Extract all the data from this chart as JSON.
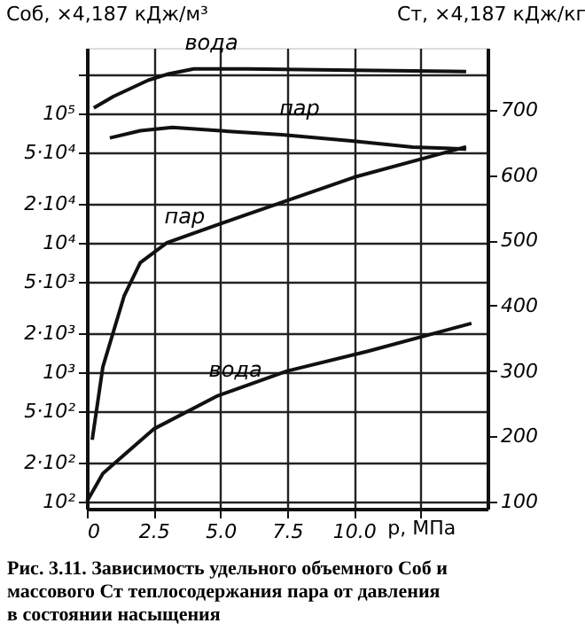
{
  "chart_data": {
    "type": "line",
    "xlabel": "p, МПа",
    "ylabel": "Cоб, ×4,187 кДж/м³",
    "y2label": "Cт, ×4,187 кДж/кг",
    "xlim": [
      0,
      15
    ],
    "xticks": [
      0,
      {
        "value": 2.5,
        "label": "2.5"
      },
      {
        "value": 5,
        "label": "5.0"
      },
      {
        "value": 7.5,
        "label": "7.5"
      },
      {
        "value": 10,
        "label": "10.0"
      },
      {
        "value": 12.5,
        "label": null
      }
    ],
    "log": "y",
    "ylim": [
      88,
      320000
    ],
    "yticks": [
      {
        "value": 100,
        "label": "10²"
      },
      {
        "value": 200,
        "label": "2·10²"
      },
      {
        "value": 500,
        "label": "5·10²"
      },
      {
        "value": 1000,
        "label": "10³"
      },
      {
        "value": 2000,
        "label": "2·10³"
      },
      {
        "value": 5000,
        "label": "5·10³"
      },
      {
        "value": 10000,
        "label": "10⁴"
      },
      {
        "value": 20000,
        "label": "2·10⁴"
      },
      {
        "value": 50000,
        "label": "5·10⁴"
      },
      {
        "value": 100000,
        "label": "10⁵"
      },
      {
        "value": 200000,
        "label": null
      }
    ],
    "y2lim": [
      89,
      795
    ],
    "y2ticks": [
      100,
      200,
      300,
      400,
      500,
      600,
      700
    ],
    "grid": true,
    "marker": "none",
    "line_style": "solid",
    "series": [
      {
        "name": "вода",
        "color": "#111111",
        "x": [
          0.26,
          1,
          2.3,
          3,
          4,
          6,
          10,
          14.2
        ],
        "values": [
          110000,
          135000,
          180000,
          200000,
          220000,
          220000,
          215000,
          210000
        ]
      },
      {
        "name": "пар",
        "color": "#111111",
        "axis": "y2",
        "x": [
          0.86,
          2,
          3.2,
          5,
          7.3,
          10,
          12.2,
          14.2
        ],
        "values": [
          657,
          668,
          673,
          668,
          662,
          652,
          643,
          640
        ]
      },
      {
        "name": "пар",
        "color": "#111111",
        "x": [
          0.2,
          0.6,
          1.4,
          2,
          3,
          5.6,
          10,
          14.2
        ],
        "values": [
          300,
          1100,
          3900,
          7000,
          10000,
          15500,
          32000,
          55000
        ]
      },
      {
        "name": "вода",
        "color": "#111111",
        "axis": "y2",
        "x": [
          0,
          0.6,
          2.5,
          4.9,
          7.5,
          10.5,
          14.4
        ],
        "values": [
          100,
          143,
          211,
          262,
          300,
          330,
          373
        ]
      }
    ],
    "annotations": [
      "Рис. 3.11. Зависимость удельного объемного Соб и\nмассового Ст теплосодержания пара от давления\nв состоянии насыщения"
    ]
  }
}
